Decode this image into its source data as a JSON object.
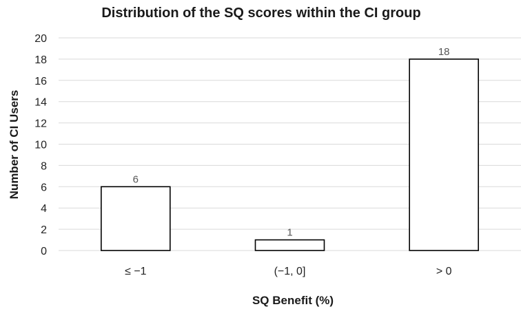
{
  "chart_data": {
    "type": "bar",
    "title": "Distribution of the SQ scores within the CI group",
    "xlabel": "SQ Benefit (%)",
    "ylabel": "Number of CI Users",
    "categories": [
      "≤ −1",
      "(−1, 0]",
      "> 0"
    ],
    "values": [
      6,
      1,
      18
    ],
    "data_labels": [
      "6",
      "1",
      "18"
    ],
    "ylim": [
      0,
      20
    ],
    "yticks": [
      "0",
      "2",
      "4",
      "6",
      "8",
      "10",
      "12",
      "14",
      "16",
      "18",
      "20"
    ],
    "grid": "horizontal",
    "legend": "none",
    "colors": {
      "bar_fill": "#ffffff",
      "bar_stroke": "#000000",
      "grid": "#d9d9d9"
    }
  }
}
